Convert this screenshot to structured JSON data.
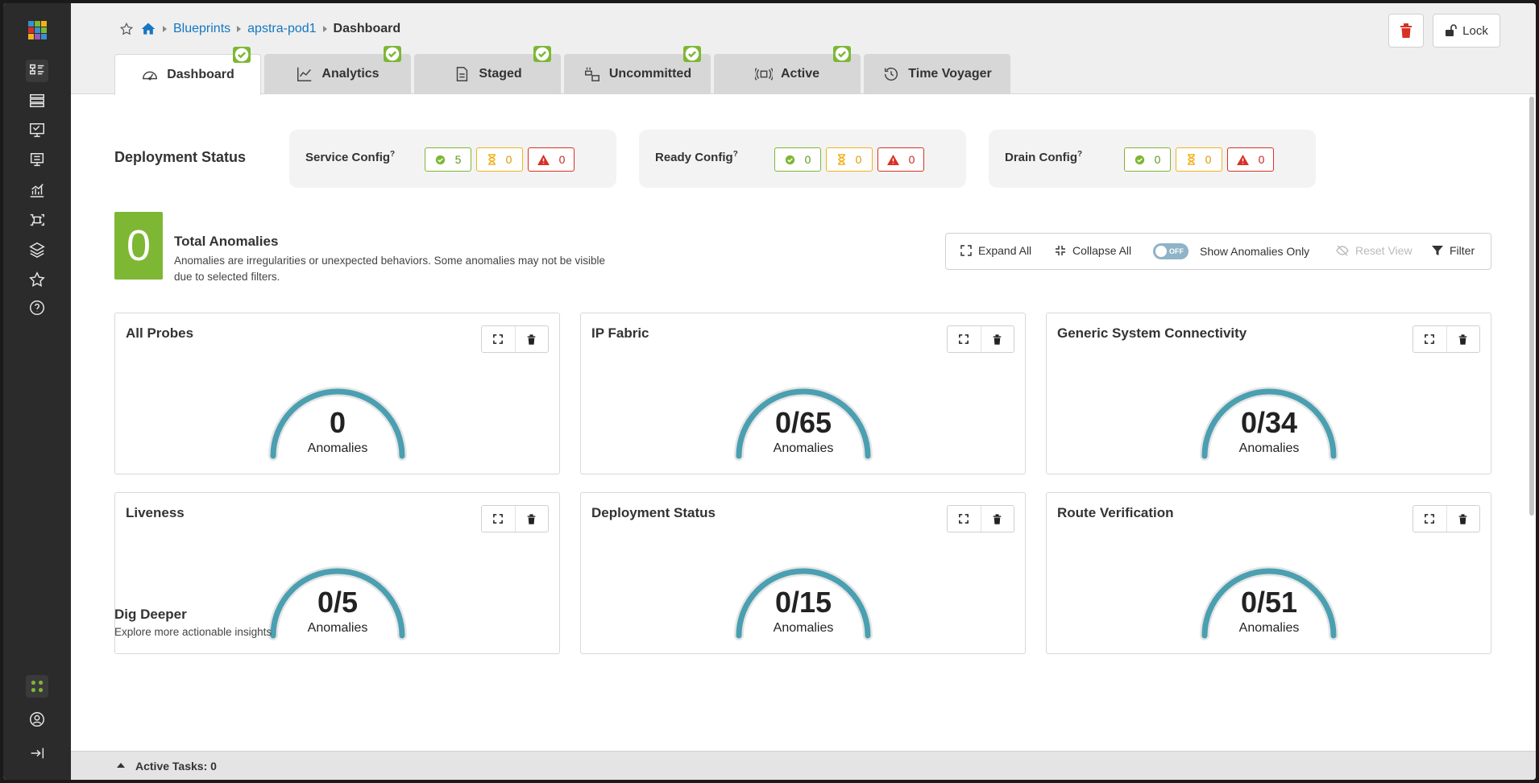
{
  "sidebar": {
    "icons": [
      "blueprints-icon",
      "devices-icon",
      "design-icon",
      "resources-icon",
      "analytics-icon",
      "external-systems-icon",
      "platform-icon",
      "favorites-icon",
      "help-icon"
    ],
    "bottom_icons": [
      "apps-icon",
      "user-icon",
      "collapse-sidebar-icon"
    ]
  },
  "breadcrumb": {
    "items": [
      "Blueprints",
      "apstra-pod1"
    ],
    "current": "Dashboard"
  },
  "top_actions": {
    "lock_label": "Lock"
  },
  "tabs": [
    {
      "label": "Dashboard",
      "icon": "dashboard-icon",
      "badge": true
    },
    {
      "label": "Analytics",
      "icon": "analytics-icon",
      "badge": true
    },
    {
      "label": "Staged",
      "icon": "staged-icon",
      "badge": true
    },
    {
      "label": "Uncommitted",
      "icon": "uncommitted-icon",
      "badge": true
    },
    {
      "label": "Active",
      "icon": "active-icon",
      "badge": true
    },
    {
      "label": "Time Voyager",
      "icon": "time-voyager-icon",
      "badge": false
    }
  ],
  "deployment_status": {
    "title": "Deployment Status",
    "configs": [
      {
        "label": "Service Config",
        "ok": "5",
        "pending": "0",
        "error": "0"
      },
      {
        "label": "Ready Config",
        "ok": "0",
        "pending": "0",
        "error": "0"
      },
      {
        "label": "Drain Config",
        "ok": "0",
        "pending": "0",
        "error": "0"
      }
    ]
  },
  "anomalies": {
    "total": "0",
    "title": "Total Anomalies",
    "description": "Anomalies are irregularities or unexpected behaviors. Some anomalies may not be visible due to selected filters."
  },
  "toolbar": {
    "expand_all": "Expand All",
    "collapse_all": "Collapse All",
    "toggle_state": "OFF",
    "show_anomalies_only": "Show Anomalies Only",
    "reset_view": "Reset View",
    "filter": "Filter"
  },
  "widgets": [
    {
      "title": "All Probes",
      "value": "0",
      "unit": "Anomalies"
    },
    {
      "title": "IP Fabric",
      "value": "0/65",
      "unit": "Anomalies"
    },
    {
      "title": "Generic System Connectivity",
      "value": "0/34",
      "unit": "Anomalies"
    },
    {
      "title": "Liveness",
      "value": "0/5",
      "unit": "Anomalies"
    },
    {
      "title": "Deployment Status",
      "value": "0/15",
      "unit": "Anomalies"
    },
    {
      "title": "Route Verification",
      "value": "0/51",
      "unit": "Anomalies"
    }
  ],
  "dig_deeper": {
    "title": "Dig Deeper",
    "subtitle": "Explore more actionable insights"
  },
  "footer": {
    "active_tasks": "Active Tasks: 0"
  },
  "colors": {
    "ok": "#7db734",
    "pending": "#f2b21c",
    "error": "#d93025",
    "gauge": "#4a9fb0",
    "link": "#1477c0"
  }
}
